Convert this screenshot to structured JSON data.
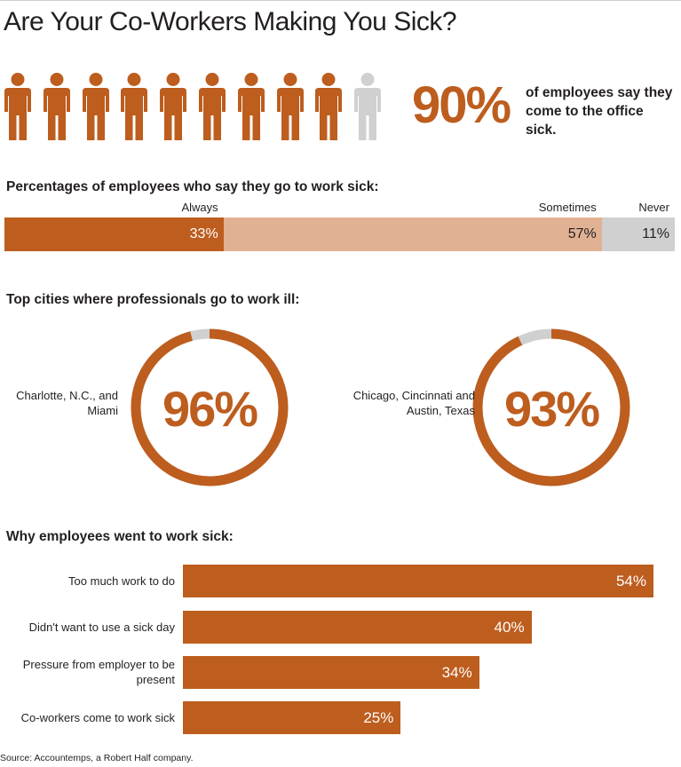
{
  "title": "Are Your Co-Workers Making You Sick?",
  "colors": {
    "accent": "#bd5d1e",
    "accent_light": "#e1b193",
    "gray": "#d0d0d0"
  },
  "people": {
    "total": 10,
    "highlighted": 9,
    "icon": "person-icon"
  },
  "headline_stat": {
    "value": "90%",
    "text": "of employees say they come to the office sick."
  },
  "chart_data": [
    {
      "type": "bar",
      "orientation": "horizontal-stacked",
      "title": "Percentages of employees who say they go to work sick:",
      "series": [
        {
          "name": "Always",
          "value": 33,
          "label": "33%"
        },
        {
          "name": "Sometimes",
          "value": 57,
          "label": "57%"
        },
        {
          "name": "Never",
          "value": 11,
          "label": "11%"
        }
      ]
    },
    {
      "type": "pie",
      "style": "donut",
      "title": "Top cities where professionals go to work ill:",
      "items": [
        {
          "label": "Charlotte, N.C., and Miami",
          "value": 96,
          "display": "96%"
        },
        {
          "label": "Chicago, Cincinnati and Austin, Texas",
          "value": 93,
          "display": "93%"
        }
      ]
    },
    {
      "type": "bar",
      "orientation": "horizontal",
      "title": "Why employees went to work sick:",
      "categories": [
        "Too much work to do",
        "Didn't want to use a sick day",
        "Pressure from employer to be present",
        "Co-workers come to work sick"
      ],
      "values": [
        54,
        40,
        34,
        25
      ],
      "labels": [
        "54%",
        "40%",
        "34%",
        "25%"
      ]
    }
  ],
  "source": "Source: Accountemps, a Robert Half company."
}
